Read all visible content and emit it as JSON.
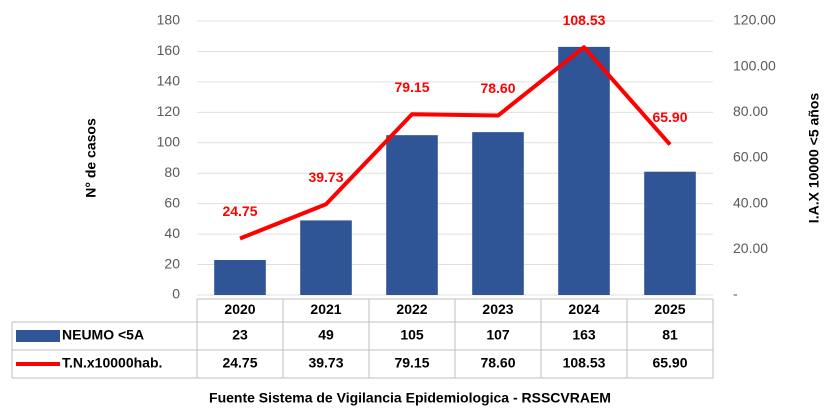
{
  "chart_data": {
    "type": "bar",
    "y_label": "N° de casos",
    "y2_label": "I.A.X 10000 <5 años",
    "source": "Fuente Sistema de Vigilancia  Epidemiologica  - RSSCVRAEM",
    "categories": [
      "2020",
      "2021",
      "2022",
      "2023",
      "2024",
      "2025"
    ],
    "series": [
      {
        "name": "NEUMO <5A",
        "type": "bar",
        "color": "#2f5597",
        "values": [
          23,
          49,
          105,
          107,
          163,
          81
        ]
      },
      {
        "name": "T.N.x10000hab.",
        "type": "line",
        "axis": "y2",
        "color": "#ff0000",
        "values": [
          24.75,
          39.73,
          79.15,
          78.6,
          108.53,
          65.9
        ],
        "value_labels": [
          "24.75",
          "39.73",
          "79.15",
          "78.60",
          "108.53",
          "65.90"
        ]
      }
    ],
    "ylim": [
      0,
      180
    ],
    "yticks": [
      0,
      20,
      40,
      60,
      80,
      100,
      120,
      140,
      160,
      180
    ],
    "y2lim": [
      0,
      120
    ],
    "y2ticks": [
      {
        "value": 0,
        "label": "-"
      },
      {
        "value": 20,
        "label": "20.00"
      },
      {
        "value": 40,
        "label": "40.00"
      },
      {
        "value": 60,
        "label": "60.00"
      },
      {
        "value": 80,
        "label": "80.00"
      },
      {
        "value": 100,
        "label": "100.00"
      },
      {
        "value": 120,
        "label": "120.00"
      }
    ],
    "grid": true
  }
}
